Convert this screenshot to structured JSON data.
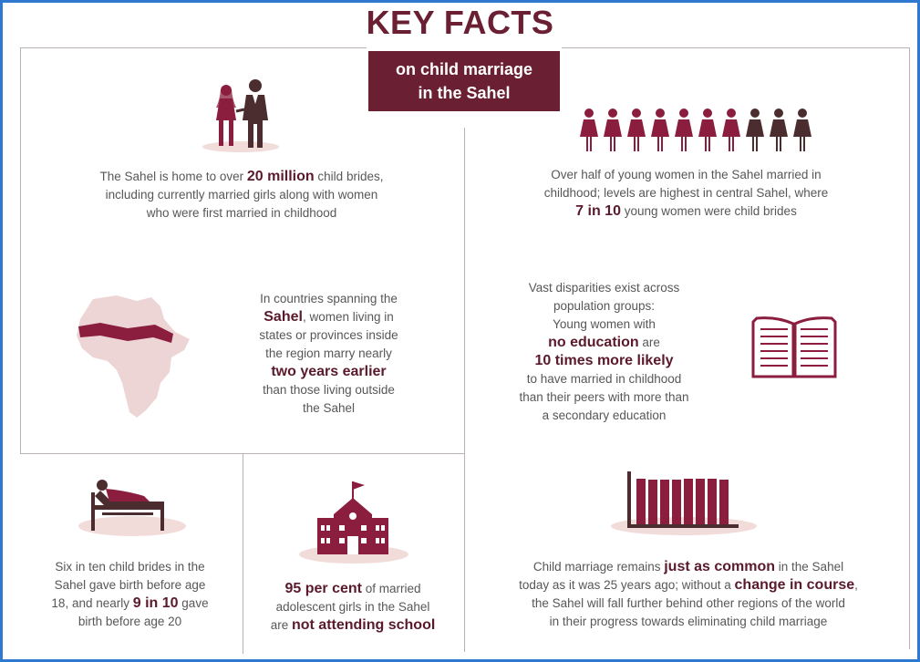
{
  "header": {
    "title": "KEY FACTS",
    "subtitle_line1": "on child marriage",
    "subtitle_line2": "in the Sahel"
  },
  "facts": {
    "child_brides": {
      "pre": "The Sahel is home to over ",
      "highlight": "20 million",
      "post_line1": " child brides,",
      "line2": "including currently married girls along with women",
      "line3": "who were first married in childhood"
    },
    "over_half": {
      "line1": "Over half of young women in the Sahel married in",
      "line2": "childhood; levels are highest in central Sahel, where",
      "highlight": "7 in 10",
      "post": " young women were child brides",
      "icon_total": 10,
      "icon_highlighted": 7
    },
    "two_years": {
      "line1": "In countries spanning the",
      "highlight1": "Sahel",
      "post1": ", women living in",
      "line3": "states or provinces inside",
      "line4": "the region marry nearly",
      "highlight2": "two years earlier",
      "line6": "than those living outside",
      "line7": "the Sahel"
    },
    "education": {
      "line1": "Vast disparities exist across",
      "line2": "population groups:",
      "line3": "Young women with",
      "highlight1": "no education",
      "post1": " are",
      "highlight2": "10 times more likely",
      "line6": "to have married in childhood",
      "line7": "than their peers with more than",
      "line8": "a secondary education"
    },
    "birth": {
      "line1": "Six in ten child brides in the",
      "line2": "Sahel gave birth before age",
      "pre3": "18, and nearly ",
      "highlight": "9 in 10",
      "post3": " gave",
      "line4": "birth before age 20"
    },
    "school": {
      "highlight1": "95 per cent",
      "post1": " of married",
      "line2": "adolescent girls in the Sahel",
      "pre3": "are ",
      "highlight2": "not attending school"
    },
    "common": {
      "pre1": "Child marriage remains ",
      "highlight1": "just as common",
      "post1": " in the Sahel",
      "pre2": "today as it was 25 years ago; without a ",
      "highlight2": "change in course",
      "post2": ",",
      "line3": "the Sahel will fall further behind other regions of the world",
      "line4": "in their progress towards eliminating child marriage"
    }
  },
  "icons": {
    "couple": "couple-icon",
    "girls_row": "girl-figures-icon",
    "africa_map": "africa-map-icon",
    "book": "open-book-icon",
    "hospital_bed": "hospital-bed-icon",
    "school": "school-building-icon",
    "bars": "bar-graph-icon"
  },
  "colors": {
    "maroon": "#6b1f33",
    "pink": "#8b1e3f",
    "light_pink": "#f1dcd9",
    "dark_figure": "#4b2d2f",
    "text": "#575757",
    "frame": "#2f78d0"
  }
}
